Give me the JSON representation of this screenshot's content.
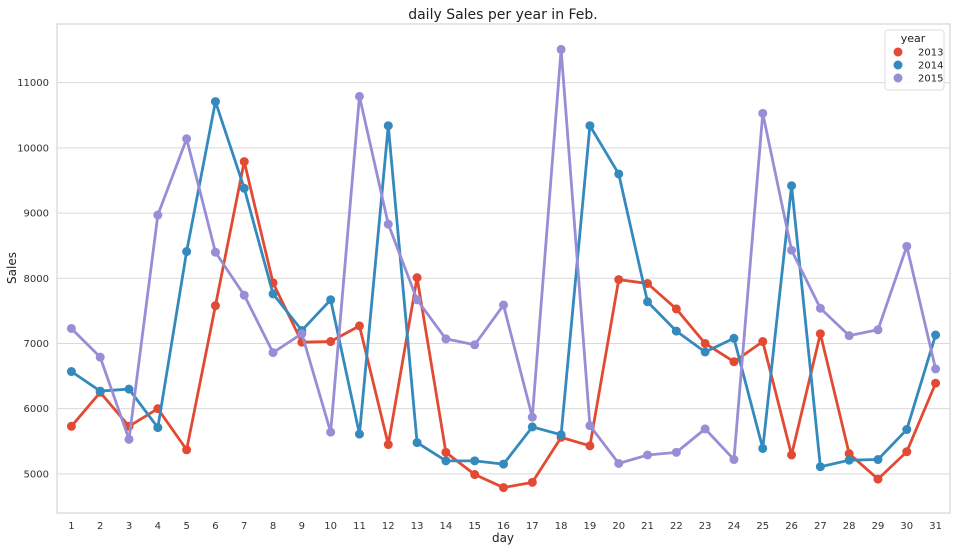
{
  "chart_data": {
    "type": "line",
    "title": "daily Sales per year in Feb.",
    "xlabel": "day",
    "ylabel": "Sales",
    "categories": [
      "1",
      "2",
      "3",
      "4",
      "5",
      "6",
      "7",
      "8",
      "9",
      "10",
      "11",
      "12",
      "13",
      "14",
      "15",
      "16",
      "17",
      "18",
      "19",
      "20",
      "21",
      "22",
      "23",
      "24",
      "25",
      "26",
      "27",
      "28",
      "29",
      "30",
      "31"
    ],
    "ylim": [
      4400,
      11900
    ],
    "yticks": [
      5000,
      6000,
      7000,
      8000,
      9000,
      10000,
      11000
    ],
    "ytick_labels": [
      "5000",
      "6000",
      "7000",
      "8000",
      "9000",
      "10000",
      "11000"
    ],
    "grid": "horizontal",
    "legend": {
      "title": "year",
      "position": "top-right"
    },
    "series": [
      {
        "name": "2013",
        "color": "#e24a33",
        "values": [
          5730,
          6250,
          5730,
          6000,
          5370,
          7580,
          9790,
          7930,
          7020,
          7030,
          7270,
          5450,
          8010,
          5330,
          4990,
          4790,
          4870,
          5560,
          5430,
          7980,
          7920,
          7530,
          7000,
          6720,
          7030,
          5290,
          7150,
          5310,
          4920,
          5340,
          6390
        ]
      },
      {
        "name": "2014",
        "color": "#348abd",
        "values": [
          6570,
          6270,
          6300,
          5710,
          8410,
          10710,
          9380,
          7760,
          7200,
          7670,
          5610,
          10340,
          5480,
          5200,
          5200,
          5150,
          5720,
          5600,
          10340,
          9600,
          7640,
          7190,
          6870,
          7080,
          5390,
          9420,
          5110,
          5210,
          5220,
          5680,
          7130
        ]
      },
      {
        "name": "2015",
        "color": "#988ed5",
        "values": [
          7230,
          6790,
          5530,
          8970,
          10140,
          8400,
          7740,
          6860,
          7150,
          5640,
          10790,
          8830,
          7670,
          7070,
          6980,
          7590,
          5870,
          11510,
          5740,
          5160,
          5290,
          5330,
          5690,
          5220,
          10530,
          8430,
          7540,
          7120,
          7210,
          8490,
          6610
        ]
      }
    ]
  }
}
